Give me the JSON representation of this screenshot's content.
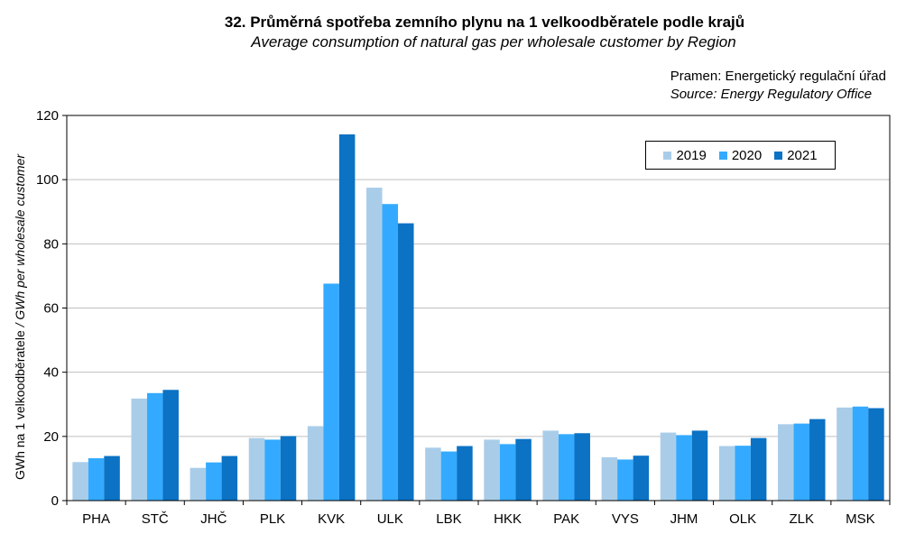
{
  "header": {
    "title_cz": "32. Průměrná spotřeba zemního plynu na 1 velkoodběratele podle krajů",
    "title_en": "Average consumption of natural gas per wholesale customer by Region",
    "source_cz": "Pramen: Energetický regulační úřad",
    "source_en": "Source: Energy Regulatory Office"
  },
  "colors": {
    "2019": "#a9cde9",
    "2020": "#33aaff",
    "2021": "#0b72c4"
  },
  "chart_data": {
    "type": "bar",
    "title": "32. Průměrná spotřeba zemního plynu na 1 velkoodběratele podle krajů",
    "subtitle": "Average consumption of natural gas per wholesale customer by Region",
    "xlabel": "",
    "ylabel": "GWh na 1 velkoodběratele  / GWh per wholesale customer",
    "ylim": [
      0,
      120
    ],
    "yticks": [
      0,
      20,
      40,
      60,
      80,
      100,
      120
    ],
    "grid": true,
    "legend_position": "top-right",
    "categories": [
      "PHA",
      "STČ",
      "JHČ",
      "PLK",
      "KVK",
      "ULK",
      "LBK",
      "HKK",
      "PAK",
      "VYS",
      "JHM",
      "OLK",
      "ZLK",
      "MSK"
    ],
    "series": [
      {
        "name": "2019",
        "values": [
          12.0,
          31.8,
          10.2,
          19.5,
          23.2,
          97.5,
          16.5,
          19.0,
          21.8,
          13.5,
          21.2,
          17.0,
          23.8,
          29.0
        ]
      },
      {
        "name": "2020",
        "values": [
          13.2,
          33.5,
          11.9,
          19.0,
          67.6,
          92.4,
          15.3,
          17.6,
          20.7,
          12.8,
          20.4,
          17.1,
          24.0,
          29.3
        ]
      },
      {
        "name": "2021",
        "values": [
          13.9,
          34.5,
          13.9,
          20.1,
          114.1,
          86.4,
          17.0,
          19.2,
          21.0,
          14.0,
          21.8,
          19.5,
          25.4,
          28.8
        ]
      }
    ]
  }
}
